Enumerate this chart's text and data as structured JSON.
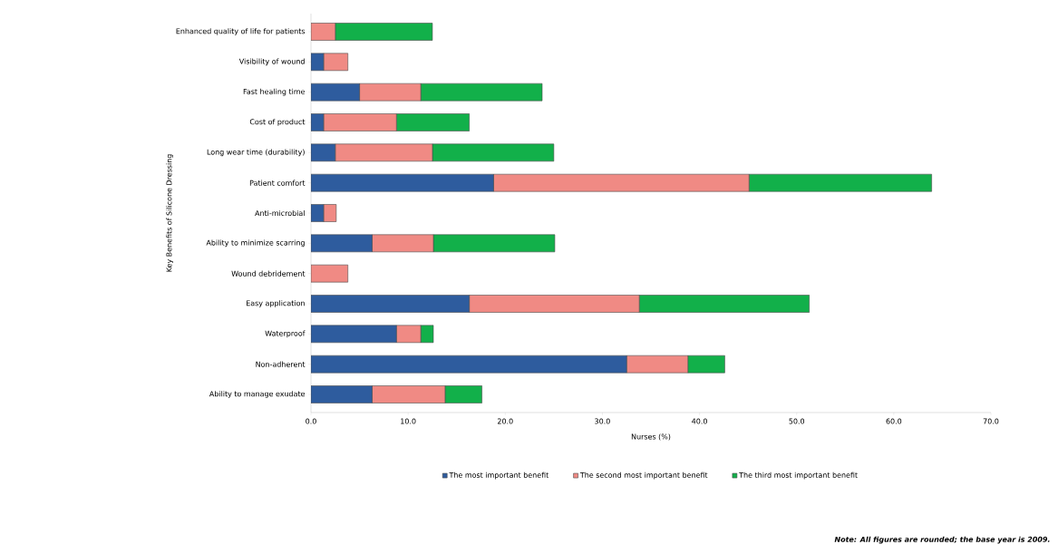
{
  "chart_data": {
    "type": "bar",
    "orientation": "horizontal",
    "stacked": true,
    "xlabel": "Nurses (%)",
    "ylabel": "Key Benefits of Silicone Dressing",
    "categories": [
      "Enhanced quality of life for patients",
      "Visibility of wound",
      "Fast healing time",
      "Cost of product",
      "Long wear time (durability)",
      "Patient comfort",
      "Anti-microbial",
      "Ability to minimize scarring",
      "Wound debridement",
      "Easy application",
      "Waterproof",
      "Non-adherent",
      "Ability to manage exudate"
    ],
    "series": [
      {
        "name": "The most important benefit",
        "color": "#2e5c9e",
        "values": [
          0,
          1.3,
          5.0,
          1.3,
          2.5,
          18.8,
          1.3,
          6.3,
          0,
          16.3,
          8.8,
          32.5,
          6.3
        ]
      },
      {
        "name": "The second most important benefit",
        "color": "#f08a84",
        "values": [
          2.5,
          2.5,
          6.3,
          7.5,
          10.0,
          26.3,
          1.3,
          6.3,
          3.8,
          17.5,
          2.5,
          6.3,
          7.5
        ]
      },
      {
        "name": "The third most important benefit",
        "color": "#12b04a",
        "values": [
          10.0,
          0,
          12.5,
          7.5,
          12.5,
          18.8,
          0,
          12.5,
          0,
          17.5,
          1.3,
          3.8,
          3.8
        ]
      }
    ],
    "xlim": [
      0,
      70
    ],
    "xticks": [
      {
        "value": 0,
        "label": "0.0"
      },
      {
        "value": 10,
        "label": "10.0"
      },
      {
        "value": 20,
        "label": "20.0"
      },
      {
        "value": 30,
        "label": "30.0"
      },
      {
        "value": 40,
        "label": "40.0"
      },
      {
        "value": 50,
        "label": "50.0"
      },
      {
        "value": 60,
        "label": "60.0"
      },
      {
        "value": 70,
        "label": "70.0"
      }
    ],
    "legend": "bottom",
    "annotations": [
      "Note: All figures are rounded; the base year is 2009."
    ]
  }
}
